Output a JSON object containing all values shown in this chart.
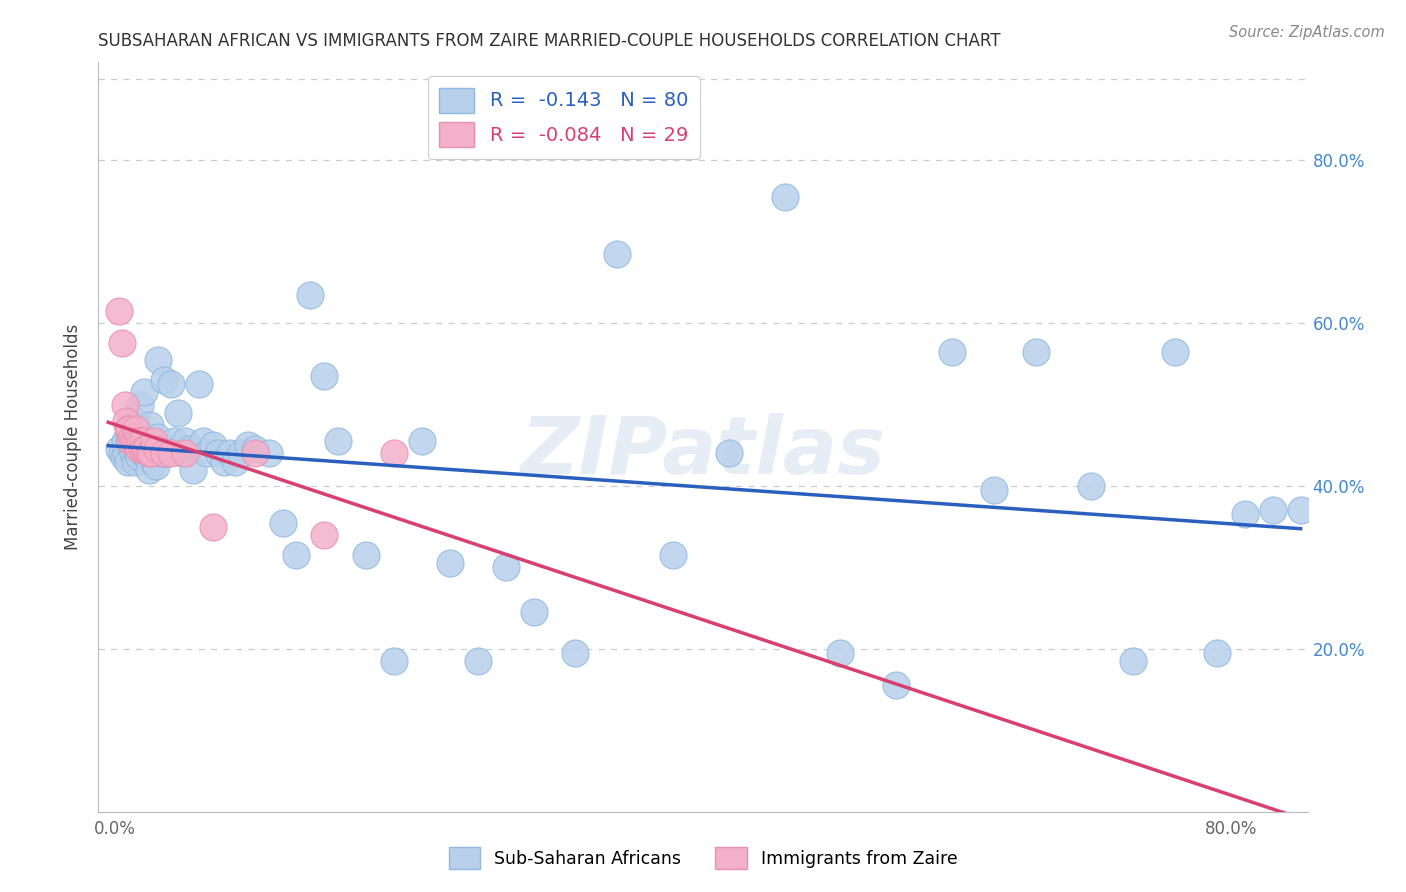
{
  "title": "SUBSAHARAN AFRICAN VS IMMIGRANTS FROM ZAIRE MARRIED-COUPLE HOUSEHOLDS CORRELATION CHART",
  "source": "Source: ZipAtlas.com",
  "ylabel": "Married-couple Households",
  "R_blue": -0.143,
  "N_blue": 80,
  "R_pink": -0.084,
  "N_pink": 29,
  "blue_fill": "#b8d0ea",
  "blue_edge": "#90b8e0",
  "pink_fill": "#f4b0c8",
  "pink_edge": "#e890b0",
  "blue_line_color": "#2a5fbe",
  "pink_line_color": "#d94070",
  "right_tick_color": "#4488cc",
  "grid_color": "#cccccc",
  "background_color": "#ffffff",
  "watermark": "ZIPatlas",
  "legend_text_blue_color": "#2a5fbe",
  "legend_text_pink_color": "#d94070",
  "blue_x": [
    0.003,
    0.005,
    0.006,
    0.007,
    0.008,
    0.009,
    0.01,
    0.011,
    0.012,
    0.013,
    0.014,
    0.015,
    0.016,
    0.016,
    0.017,
    0.018,
    0.019,
    0.02,
    0.021,
    0.022,
    0.023,
    0.024,
    0.025,
    0.026,
    0.027,
    0.028,
    0.029,
    0.03,
    0.031,
    0.033,
    0.035,
    0.037,
    0.04,
    0.042,
    0.045,
    0.048,
    0.05,
    0.053,
    0.056,
    0.06,
    0.063,
    0.066,
    0.07,
    0.074,
    0.078,
    0.082,
    0.086,
    0.09,
    0.095,
    0.1,
    0.11,
    0.12,
    0.13,
    0.14,
    0.15,
    0.16,
    0.18,
    0.2,
    0.22,
    0.24,
    0.26,
    0.28,
    0.3,
    0.33,
    0.36,
    0.4,
    0.44,
    0.48,
    0.52,
    0.56,
    0.6,
    0.63,
    0.66,
    0.7,
    0.73,
    0.76,
    0.79,
    0.81,
    0.83,
    0.85
  ],
  "blue_y": [
    0.445,
    0.44,
    0.435,
    0.455,
    0.44,
    0.43,
    0.46,
    0.45,
    0.455,
    0.44,
    0.43,
    0.48,
    0.445,
    0.44,
    0.435,
    0.5,
    0.455,
    0.44,
    0.515,
    0.44,
    0.435,
    0.42,
    0.475,
    0.455,
    0.44,
    0.43,
    0.425,
    0.46,
    0.555,
    0.44,
    0.53,
    0.44,
    0.525,
    0.455,
    0.49,
    0.44,
    0.455,
    0.445,
    0.42,
    0.525,
    0.455,
    0.44,
    0.45,
    0.44,
    0.43,
    0.44,
    0.43,
    0.44,
    0.45,
    0.445,
    0.44,
    0.355,
    0.315,
    0.635,
    0.535,
    0.455,
    0.315,
    0.185,
    0.455,
    0.305,
    0.185,
    0.3,
    0.245,
    0.195,
    0.685,
    0.315,
    0.44,
    0.755,
    0.195,
    0.155,
    0.565,
    0.395,
    0.565,
    0.4,
    0.185,
    0.565,
    0.195,
    0.365,
    0.37,
    0.37
  ],
  "pink_x": [
    0.003,
    0.005,
    0.007,
    0.008,
    0.009,
    0.01,
    0.011,
    0.012,
    0.013,
    0.014,
    0.015,
    0.016,
    0.017,
    0.018,
    0.019,
    0.02,
    0.021,
    0.022,
    0.024,
    0.026,
    0.028,
    0.03,
    0.035,
    0.04,
    0.05,
    0.07,
    0.1,
    0.15,
    0.2
  ],
  "pink_y": [
    0.615,
    0.575,
    0.5,
    0.48,
    0.47,
    0.47,
    0.455,
    0.46,
    0.455,
    0.455,
    0.47,
    0.455,
    0.445,
    0.455,
    0.445,
    0.455,
    0.445,
    0.445,
    0.44,
    0.44,
    0.455,
    0.445,
    0.44,
    0.44,
    0.44,
    0.35,
    0.44,
    0.34,
    0.44
  ]
}
